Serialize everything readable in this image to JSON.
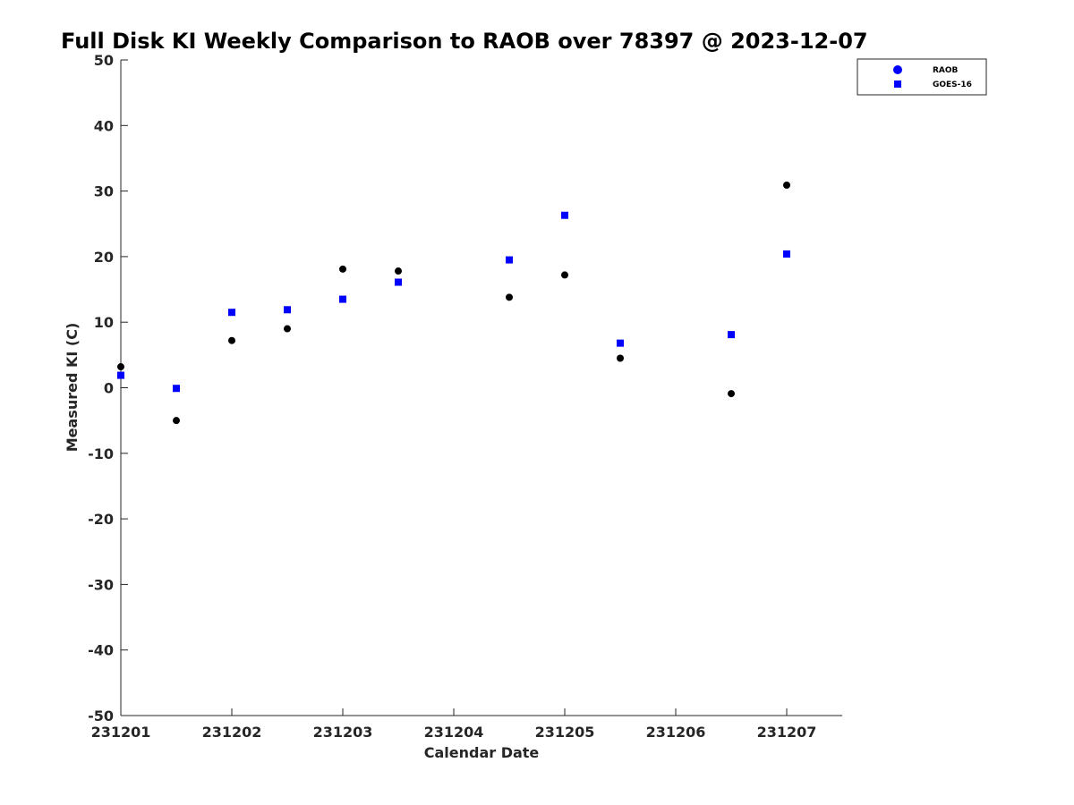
{
  "chart_data": {
    "type": "scatter",
    "title": "Full Disk KI Weekly Comparison to RAOB over 78397 @ 2023-12-07",
    "xlabel": "Calendar Date",
    "ylabel": "Measured KI (C)",
    "xlim": [
      0,
      6.5
    ],
    "ylim": [
      -50,
      50
    ],
    "x_ticks": [
      0,
      1,
      2,
      3,
      4,
      5,
      6
    ],
    "x_tick_labels": [
      "231201",
      "231202",
      "231203",
      "231204",
      "231205",
      "231206",
      "231207"
    ],
    "y_ticks": [
      -50,
      -40,
      -30,
      -20,
      -10,
      0,
      10,
      20,
      30,
      40,
      50
    ],
    "y_tick_labels": [
      "-50",
      "-40",
      "-30",
      "-20",
      "-10",
      "0",
      "10",
      "20",
      "30",
      "40",
      "50"
    ],
    "grid": false,
    "legend_position": "top-right",
    "series": [
      {
        "name": "RAOB",
        "marker": "circle",
        "color": "#000000",
        "legend_color": "#0000ff",
        "x": [
          0,
          0.5,
          1,
          1.5,
          2,
          2.5,
          3.5,
          4,
          4.5,
          5.5,
          6
        ],
        "y": [
          3.2,
          -5,
          7.2,
          9,
          18.1,
          17.8,
          13.8,
          17.2,
          4.5,
          -0.9,
          30.9
        ]
      },
      {
        "name": "GOES-16",
        "marker": "square",
        "color": "#0000ff",
        "legend_color": "#0000ff",
        "x": [
          0,
          0.5,
          1,
          1.5,
          2,
          2.5,
          3.5,
          4,
          4.5,
          5.5,
          6
        ],
        "y": [
          1.9,
          -0.1,
          11.5,
          11.9,
          13.5,
          16.1,
          19.5,
          26.3,
          6.8,
          8.1,
          20.4
        ]
      }
    ]
  }
}
